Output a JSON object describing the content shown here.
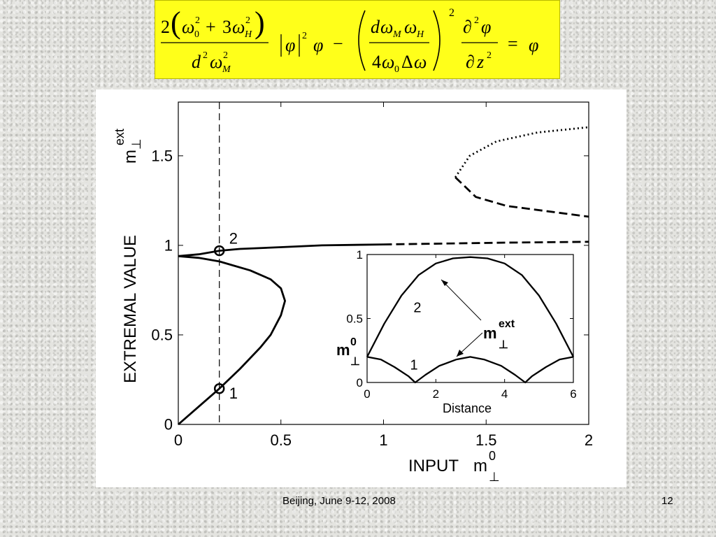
{
  "equation": {
    "eq_lhs_num_coef": "2",
    "eq_lhs_num_rest": "3",
    "eq_lhs_den": "d",
    "eq_mid_num": "d",
    "eq_mid_den_coef": "4",
    "eq_exp_2": "2"
  },
  "footer": {
    "venue": "Beijing, June 9-12, 2008",
    "page_number": "12"
  },
  "chart_data": [
    {
      "type": "line",
      "xlabel": "INPUT",
      "xlabel_symbol": "m",
      "xlabel_superscript": "0",
      "xlabel_subscript": "⊥",
      "ylabel": "EXTREMAL VALUE",
      "ylabel_symbol": "m",
      "ylabel_superscript": "ext",
      "ylabel_subscript": "⊥",
      "xlim": [
        0,
        2
      ],
      "ylim": [
        0,
        1.8
      ],
      "xticks": [
        0,
        0.5,
        1,
        1.5,
        2
      ],
      "xtick_labels": [
        "0",
        "0.5",
        "1",
        "1.5",
        "2"
      ],
      "yticks": [
        0,
        0.5,
        1,
        1.5
      ],
      "ytick_labels": [
        "0",
        "0.5",
        "1",
        "1.5"
      ],
      "grid": false,
      "vertical_reference_line": {
        "x": 0.2,
        "style": "dashed"
      },
      "series": [
        {
          "style": "solid",
          "points": [
            [
              0,
              0
            ],
            [
              0.1,
              0.1
            ],
            [
              0.2,
              0.2
            ],
            [
              0.3,
              0.31
            ],
            [
              0.4,
              0.43
            ],
            [
              0.45,
              0.5
            ],
            [
              0.5,
              0.61
            ],
            [
              0.52,
              0.69
            ],
            [
              0.5,
              0.76
            ],
            [
              0.45,
              0.81
            ],
            [
              0.35,
              0.86
            ],
            [
              0.2,
              0.91
            ],
            [
              0.1,
              0.93
            ],
            [
              0.0,
              0.94
            ]
          ]
        },
        {
          "style": "solid",
          "points": [
            [
              0.0,
              0.94
            ],
            [
              0.1,
              0.95
            ],
            [
              0.2,
              0.97
            ],
            [
              0.3,
              0.98
            ],
            [
              0.5,
              0.99
            ],
            [
              0.7,
              1.0
            ],
            [
              1.0,
              1.005
            ]
          ]
        },
        {
          "style": "dashed",
          "points": [
            [
              1.0,
              1.005
            ],
            [
              1.3,
              1.01
            ],
            [
              1.6,
              1.015
            ],
            [
              2.0,
              1.02
            ]
          ]
        },
        {
          "style": "dashed",
          "points": [
            [
              1.35,
              1.38
            ],
            [
              1.45,
              1.27
            ],
            [
              1.6,
              1.22
            ],
            [
              1.8,
              1.19
            ],
            [
              2.0,
              1.16
            ]
          ]
        },
        {
          "style": "dotted",
          "points": [
            [
              1.35,
              1.38
            ],
            [
              1.42,
              1.5
            ],
            [
              1.55,
              1.58
            ],
            [
              1.75,
              1.63
            ],
            [
              2.0,
              1.66
            ]
          ]
        }
      ],
      "markers": [
        {
          "x": 0.2,
          "y": 0.2,
          "label": "1"
        },
        {
          "x": 0.2,
          "y": 0.97,
          "label": "2"
        }
      ]
    },
    {
      "type": "line",
      "xlabel": "Distance",
      "ylabel_symbol": "m",
      "ylabel_superscript": "0",
      "ylabel_subscript": "⊥",
      "xlim": [
        0,
        6
      ],
      "ylim": [
        0,
        1
      ],
      "xticks": [
        0,
        2,
        4,
        6
      ],
      "xtick_labels": [
        "0",
        "2",
        "4",
        "6"
      ],
      "yticks": [
        0,
        0.5,
        1
      ],
      "ytick_labels": [
        "0",
        "0.5",
        "1"
      ],
      "grid": false,
      "annotation": {
        "symbol": "m",
        "superscript": "ext",
        "subscript": "⊥"
      },
      "series": [
        {
          "label": "2",
          "style": "solid",
          "points": [
            [
              0,
              0.2
            ],
            [
              0.5,
              0.46
            ],
            [
              1,
              0.68
            ],
            [
              1.5,
              0.84
            ],
            [
              2,
              0.93
            ],
            [
              2.5,
              0.97
            ],
            [
              3,
              0.98
            ],
            [
              3.5,
              0.97
            ],
            [
              4,
              0.93
            ],
            [
              4.5,
              0.84
            ],
            [
              5,
              0.68
            ],
            [
              5.5,
              0.46
            ],
            [
              6,
              0.2
            ]
          ]
        },
        {
          "label": "1",
          "style": "solid",
          "points": [
            [
              0,
              0.2
            ],
            [
              0.4,
              0.18
            ],
            [
              0.8,
              0.12
            ],
            [
              1.2,
              0.05
            ],
            [
              1.4,
              0
            ],
            [
              1.7,
              0.06
            ],
            [
              2.1,
              0.13
            ],
            [
              2.6,
              0.18
            ],
            [
              3,
              0.2
            ],
            [
              3.4,
              0.18
            ],
            [
              3.9,
              0.13
            ],
            [
              4.3,
              0.06
            ],
            [
              4.6,
              0
            ],
            [
              4.8,
              0.05
            ],
            [
              5.2,
              0.12
            ],
            [
              5.6,
              0.18
            ],
            [
              6,
              0.2
            ]
          ]
        }
      ]
    }
  ]
}
